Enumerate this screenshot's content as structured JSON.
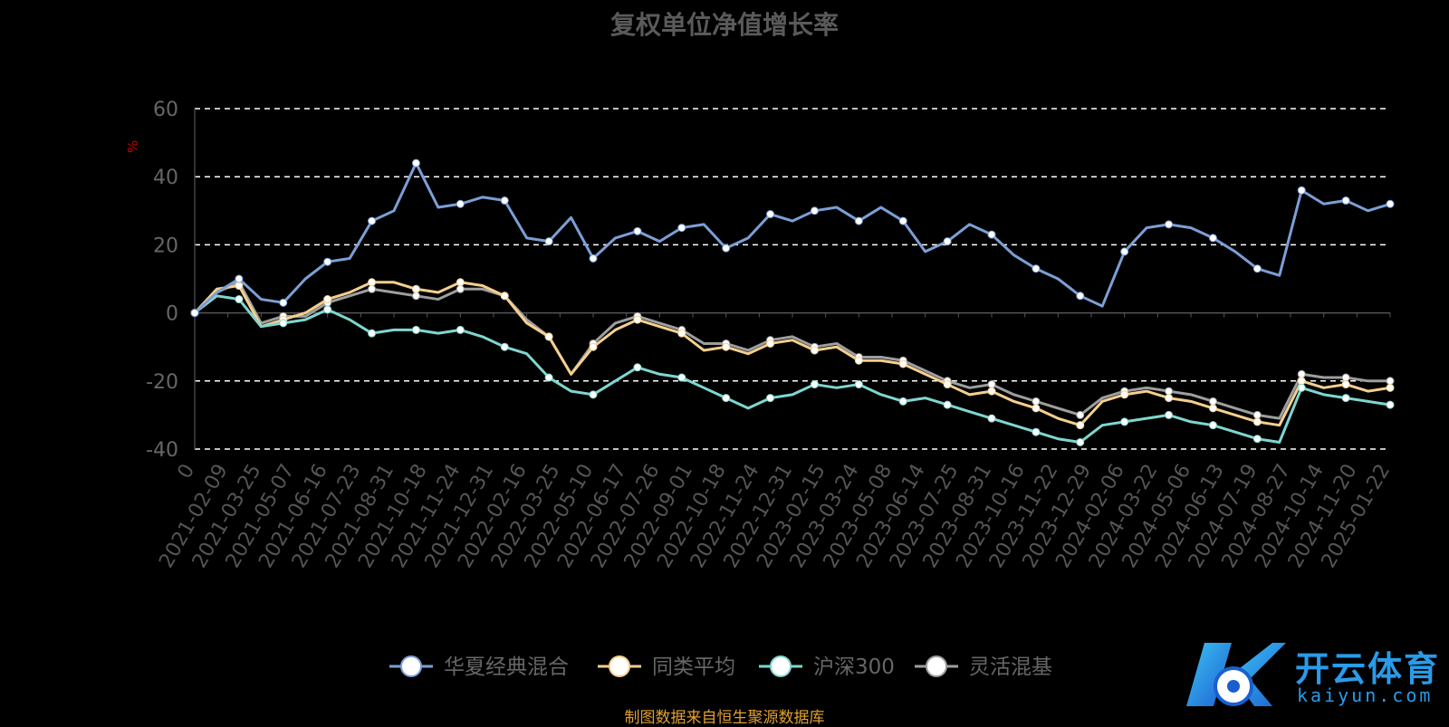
{
  "chart_data": {
    "type": "line",
    "title": "复权单位净值增长率",
    "ylabel": "%",
    "ylim": [
      -40,
      60
    ],
    "yticks": [
      60,
      40,
      20,
      0,
      -20,
      -40
    ],
    "grid": true,
    "legend_position": "bottom-center",
    "x_tick_labels": [
      "0",
      "2021-02-09",
      "2021-03-25",
      "2021-05-07",
      "2021-06-16",
      "2021-07-23",
      "2021-08-31",
      "2021-10-18",
      "2021-11-24",
      "2021-12-31",
      "2022-02-16",
      "2022-03-25",
      "2022-05-10",
      "2022-06-17",
      "2022-07-26",
      "2022-09-01",
      "2022-10-18",
      "2022-11-24",
      "2022-12-31",
      "2023-02-15",
      "2023-03-24",
      "2023-05-08",
      "2023-06-14",
      "2023-07-25",
      "2023-08-31",
      "2023-10-16",
      "2023-11-22",
      "2023-12-29",
      "2024-02-06",
      "2024-03-22",
      "2024-05-06",
      "2024-06-13",
      "2024-07-19",
      "2024-08-27",
      "2024-10-14",
      "2024-11-20",
      "2025-01-22"
    ],
    "series": [
      {
        "name": "华夏经典混合",
        "color": "#7b9fd6",
        "values": [
          0,
          6,
          10,
          4,
          3,
          10,
          15,
          16,
          27,
          30,
          44,
          31,
          32,
          34,
          33,
          22,
          21,
          28,
          16,
          22,
          24,
          21,
          25,
          26,
          19,
          22,
          29,
          27,
          30,
          31,
          27,
          31,
          27,
          18,
          21,
          26,
          23,
          17,
          13,
          10,
          5,
          2,
          18,
          25,
          26,
          25,
          22,
          18,
          13,
          11,
          36,
          32,
          33,
          30,
          32
        ]
      },
      {
        "name": "同类平均",
        "color": "#f5cf8e",
        "values": [
          0,
          7,
          8,
          -4,
          -2,
          0,
          4,
          6,
          9,
          9,
          7,
          6,
          9,
          8,
          5,
          -3,
          -7,
          -18,
          -10,
          -5,
          -2,
          -4,
          -6,
          -11,
          -10,
          -12,
          -9,
          -8,
          -11,
          -10,
          -14,
          -14,
          -15,
          -18,
          -21,
          -24,
          -23,
          -26,
          -28,
          -31,
          -33,
          -26,
          -24,
          -23,
          -25,
          -26,
          -28,
          -30,
          -32,
          -33,
          -20,
          -22,
          -21,
          -23,
          -22
        ]
      },
      {
        "name": "沪深300",
        "color": "#7fd6d0",
        "values": [
          0,
          5,
          4,
          -4,
          -3,
          -2,
          1,
          -2,
          -6,
          -5,
          -5,
          -6,
          -5,
          -7,
          -10,
          -12,
          -19,
          -23,
          -24,
          -20,
          -16,
          -18,
          -19,
          -22,
          -25,
          -28,
          -25,
          -24,
          -21,
          -22,
          -21,
          -24,
          -26,
          -25,
          -27,
          -29,
          -31,
          -33,
          -35,
          -37,
          -38,
          -33,
          -32,
          -31,
          -30,
          -32,
          -33,
          -35,
          -37,
          -38,
          -22,
          -24,
          -25,
          -26,
          -27
        ]
      },
      {
        "name": "灵活混基",
        "color": "#9e9e9e",
        "values": [
          0,
          6,
          9,
          -3,
          -1,
          -1,
          3,
          5,
          7,
          6,
          5,
          4,
          7,
          7,
          5,
          -2,
          -7,
          -18,
          -9,
          -3,
          -1,
          -3,
          -5,
          -9,
          -9,
          -11,
          -8,
          -7,
          -10,
          -9,
          -13,
          -13,
          -14,
          -17,
          -20,
          -22,
          -21,
          -24,
          -26,
          -28,
          -30,
          -25,
          -23,
          -22,
          -23,
          -24,
          -26,
          -28,
          -30,
          -31,
          -18,
          -19,
          -19,
          -20,
          -20
        ]
      }
    ]
  },
  "source_note": "制图数据来自恒生聚源数据库",
  "watermark": {
    "name": "开云体育",
    "url_text": "kaiyun.com"
  }
}
